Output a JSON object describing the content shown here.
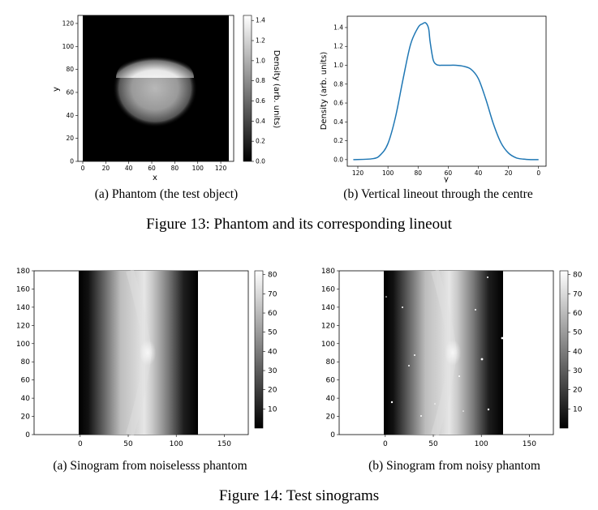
{
  "figure13": {
    "caption": "Figure 13: Phantom and its corresponding lineout",
    "panel_a": {
      "caption": "(a) Phantom (the test object)",
      "xlabel": "x",
      "ylabel": "y",
      "colorbar_label": "Density (arb. units)",
      "x_ticks": [
        "0",
        "20",
        "40",
        "60",
        "80",
        "100",
        "120"
      ],
      "y_ticks": [
        "0",
        "20",
        "40",
        "60",
        "80",
        "100",
        "120"
      ],
      "colorbar_ticks": [
        "0.0",
        "0.2",
        "0.4",
        "0.6",
        "0.8",
        "1.0",
        "1.2",
        "1.4"
      ]
    },
    "panel_b": {
      "caption": "(b) Vertical lineout through the centre",
      "xlabel": "y",
      "ylabel": "Density (arb. units)",
      "line_color": "#1f77b4"
    }
  },
  "figure14": {
    "caption": "Figure 14: Test sinograms",
    "panel_a": {
      "caption": "(a) Sinogram from noiselesss phantom"
    },
    "panel_b": {
      "caption": "(b) Sinogram from noisy phantom"
    },
    "x_ticks": [
      "0",
      "50",
      "100",
      "150"
    ],
    "y_ticks": [
      "0",
      "20",
      "40",
      "60",
      "80",
      "100",
      "120",
      "140",
      "160",
      "180"
    ],
    "colorbar_ticks": [
      "10",
      "20",
      "30",
      "40",
      "50",
      "60",
      "70",
      "80"
    ]
  },
  "chart_data": [
    {
      "type": "line",
      "name": "vertical-lineout",
      "xlabel": "y",
      "ylabel": "Density (arb. units)",
      "xlim": [
        127,
        -5
      ],
      "ylim": [
        -0.07,
        1.52
      ],
      "x_ticks": [
        120,
        100,
        80,
        60,
        40,
        20,
        0
      ],
      "y_ticks": [
        0.0,
        0.2,
        0.4,
        0.6,
        0.8,
        1.0,
        1.2,
        1.4
      ],
      "x": [
        123,
        110,
        105,
        100,
        95,
        90,
        85,
        80,
        77,
        75,
        73,
        72,
        70,
        68,
        66,
        64,
        60,
        55,
        50,
        45,
        40,
        35,
        30,
        25,
        20,
        15,
        10,
        5,
        0
      ],
      "y": [
        0.0,
        0.01,
        0.05,
        0.17,
        0.45,
        0.85,
        1.22,
        1.4,
        1.44,
        1.45,
        1.39,
        1.25,
        1.06,
        1.01,
        1.0,
        1.0,
        1.0,
        1.0,
        0.99,
        0.96,
        0.86,
        0.64,
        0.38,
        0.18,
        0.07,
        0.02,
        0.005,
        0.0,
        0.0
      ]
    }
  ]
}
